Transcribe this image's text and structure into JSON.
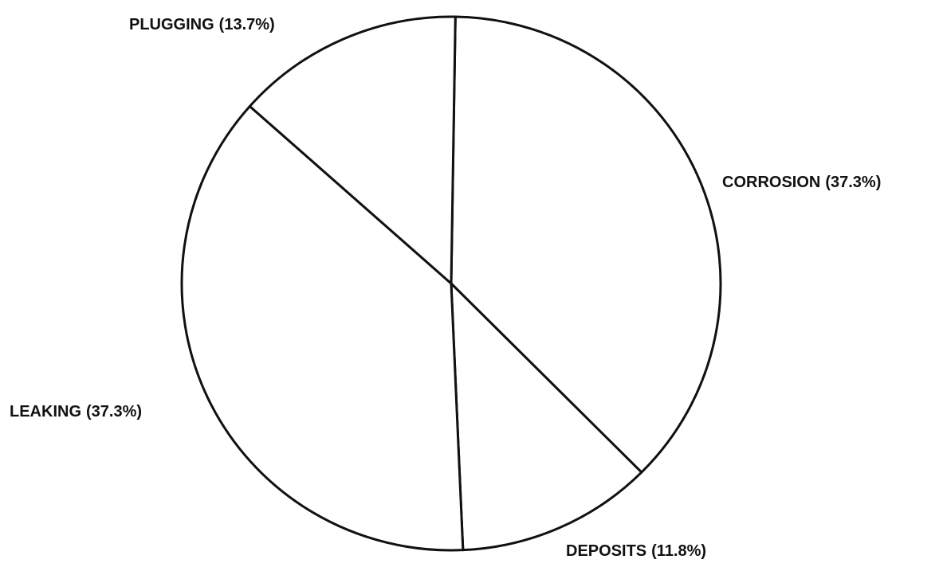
{
  "chart_data": {
    "type": "pie",
    "categories": [
      "CORROSION",
      "DEPOSITS",
      "LEAKING",
      "PLUGGING"
    ],
    "values": [
      37.3,
      11.8,
      37.3,
      13.7
    ],
    "value_labels": [
      "(37.3%)",
      "(11.8%)",
      "(37.3%)",
      "(13.7%)"
    ],
    "color": "#ffffff"
  }
}
